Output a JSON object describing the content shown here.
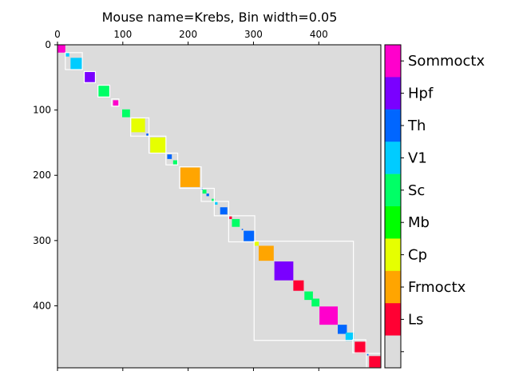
{
  "chart_data": {
    "type": "heatmap",
    "title": "Mouse name=Krebs, Bin width=0.05",
    "xlim": [
      0,
      495
    ],
    "ylim": [
      0,
      495
    ],
    "x_ticks": [
      "0",
      "100",
      "200",
      "300",
      "400"
    ],
    "y_ticks": [
      "0",
      "100",
      "200",
      "300",
      "400"
    ],
    "x_tick_values": [
      0,
      100,
      200,
      300,
      400
    ],
    "y_tick_values": [
      0,
      100,
      200,
      300,
      400
    ],
    "background_color": "#dcdcdc",
    "region_colors": {
      "Sommoctx": "#ff00cc",
      "Hpf": "#7a00ff",
      "Th": "#0066ff",
      "V1": "#00ccff",
      "Sc": "#00ff66",
      "Mb": "#00ff00",
      "Cp": "#e6ff00",
      "Frmoctx": "#ffa500",
      "Ls": "#ff0033"
    },
    "colorbar": {
      "labels": [
        "Sommoctx",
        "Hpf",
        "Th",
        "V1",
        "Sc",
        "Mb",
        "Cp",
        "Frmoctx",
        "Ls",
        ""
      ],
      "colors": [
        "#ff00cc",
        "#7a00ff",
        "#0066ff",
        "#00ccff",
        "#00ff66",
        "#00ff00",
        "#e6ff00",
        "#ffa500",
        "#ff0033",
        "#dcdcdc"
      ]
    },
    "blocks": [
      {
        "start": 0,
        "size": 12,
        "region": "Sommoctx"
      },
      {
        "start": 12,
        "size": 6,
        "region": "V1"
      },
      {
        "start": 20,
        "size": 18,
        "region": "V1"
      },
      {
        "start": 41,
        "size": 17,
        "region": "Hpf"
      },
      {
        "start": 62,
        "size": 18,
        "region": "Sc"
      },
      {
        "start": 85,
        "size": 9,
        "region": "Sommoctx"
      },
      {
        "start": 99,
        "size": 12,
        "region": "Sc"
      },
      {
        "start": 113,
        "size": 21,
        "region": "Cp"
      },
      {
        "start": 136,
        "size": 4,
        "region": "Th"
      },
      {
        "start": 142,
        "size": 24,
        "region": "Cp"
      },
      {
        "start": 168,
        "size": 7,
        "region": "Th"
      },
      {
        "start": 177,
        "size": 7,
        "region": "Sc"
      },
      {
        "start": 188,
        "size": 30,
        "region": "Frmoctx"
      },
      {
        "start": 219,
        "size": 3,
        "region": "Th"
      },
      {
        "start": 222,
        "size": 6,
        "region": "Sc"
      },
      {
        "start": 228,
        "size": 4,
        "region": "Th"
      },
      {
        "start": 236,
        "size": 5,
        "region": "Sc"
      },
      {
        "start": 241,
        "size": 4,
        "region": "V1"
      },
      {
        "start": 249,
        "size": 11,
        "region": "Th"
      },
      {
        "start": 263,
        "size": 4,
        "region": "Ls"
      },
      {
        "start": 267,
        "size": 12,
        "region": "Sc"
      },
      {
        "start": 282,
        "size": 2,
        "region": "Th"
      },
      {
        "start": 285,
        "size": 16,
        "region": "Th"
      },
      {
        "start": 301,
        "size": 7,
        "region": "Cp"
      },
      {
        "start": 308,
        "size": 23,
        "region": "Frmoctx"
      },
      {
        "start": 332,
        "size": 29,
        "region": "Hpf"
      },
      {
        "start": 361,
        "size": 16,
        "region": "Ls"
      },
      {
        "start": 378,
        "size": 13,
        "region": "Sc"
      },
      {
        "start": 389,
        "size": 12,
        "region": "Sc"
      },
      {
        "start": 401,
        "size": 28,
        "region": "Sommoctx"
      },
      {
        "start": 429,
        "size": 14,
        "region": "Th"
      },
      {
        "start": 441,
        "size": 13,
        "region": "V1"
      },
      {
        "start": 455,
        "size": 18,
        "region": "Ls"
      },
      {
        "start": 473,
        "size": 3,
        "region": "Th"
      },
      {
        "start": 477,
        "size": 20,
        "region": "Ls"
      }
    ],
    "cluster_outlines": [
      {
        "start": 12,
        "size": 26
      },
      {
        "start": 41,
        "size": 17
      },
      {
        "start": 62,
        "size": 18
      },
      {
        "start": 83,
        "size": 11
      },
      {
        "start": 112,
        "size": 28
      },
      {
        "start": 140,
        "size": 26
      },
      {
        "start": 166,
        "size": 18
      },
      {
        "start": 187,
        "size": 33
      },
      {
        "start": 220,
        "size": 20
      },
      {
        "start": 240,
        "size": 22
      },
      {
        "start": 262,
        "size": 40
      },
      {
        "start": 301,
        "size": 152
      },
      {
        "start": 452,
        "size": 20
      },
      {
        "start": 473,
        "size": 24
      }
    ]
  }
}
